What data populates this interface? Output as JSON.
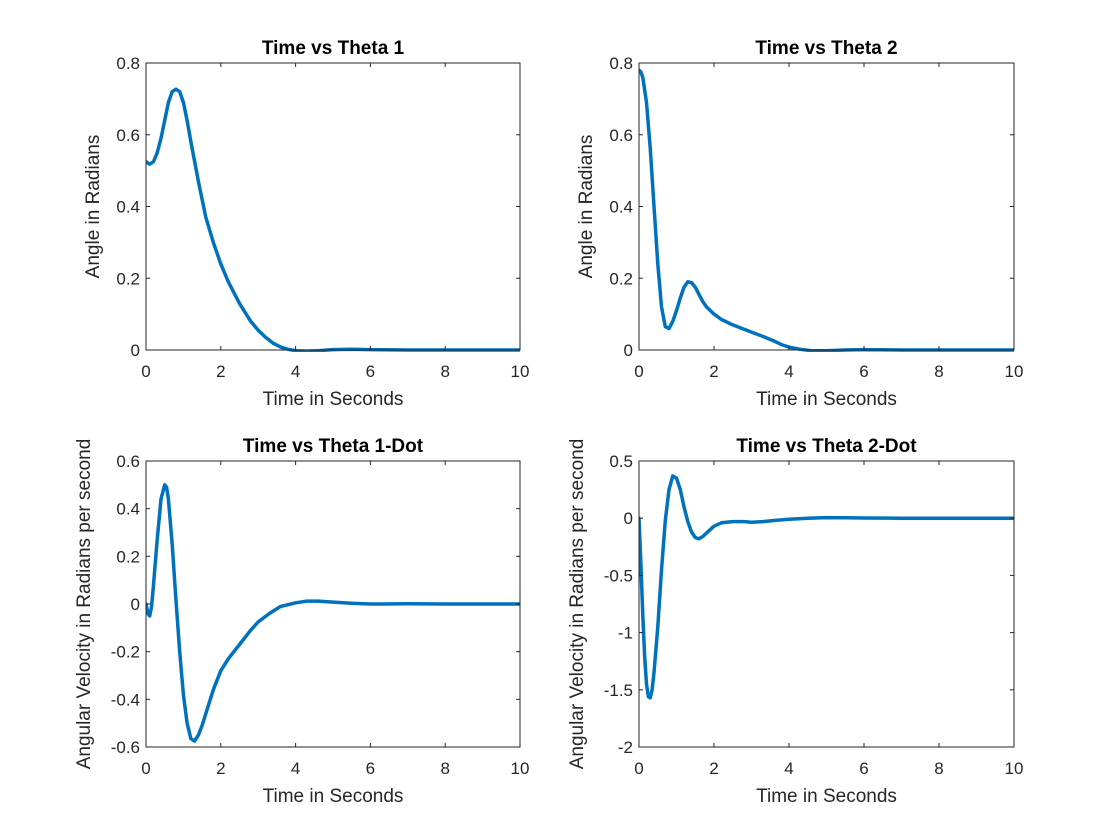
{
  "figure": {
    "background": "#ffffff",
    "line_color": "#0072bd"
  },
  "chart_data": [
    {
      "type": "line",
      "title": "Time vs Theta 1",
      "xlabel": "Time in Seconds",
      "ylabel": "Angle in Radians",
      "xlim": [
        0,
        10
      ],
      "ylim": [
        0,
        0.8
      ],
      "xticks": [
        0,
        2,
        4,
        6,
        8,
        10
      ],
      "yticks": [
        0,
        0.2,
        0.4,
        0.6,
        0.8
      ],
      "xtick_labels": [
        "0",
        "2",
        "4",
        "6",
        "8",
        "10"
      ],
      "ytick_labels": [
        "0",
        "0.2",
        "0.4",
        "0.6",
        "0.8"
      ],
      "grid": false,
      "series": [
        {
          "color": "#0072bd",
          "x": [
            0,
            0.1,
            0.2,
            0.3,
            0.4,
            0.5,
            0.6,
            0.7,
            0.8,
            0.9,
            1.0,
            1.1,
            1.2,
            1.4,
            1.6,
            1.8,
            2.0,
            2.2,
            2.5,
            2.8,
            3.0,
            3.2,
            3.4,
            3.6,
            3.8,
            4.0,
            4.3,
            4.6,
            5.0,
            5.5,
            6.0,
            7.0,
            8.0,
            9.0,
            10.0
          ],
          "y": [
            0.525,
            0.518,
            0.525,
            0.55,
            0.59,
            0.64,
            0.69,
            0.72,
            0.727,
            0.72,
            0.69,
            0.64,
            0.58,
            0.47,
            0.37,
            0.3,
            0.24,
            0.19,
            0.13,
            0.08,
            0.055,
            0.035,
            0.019,
            0.008,
            0.002,
            -0.002,
            -0.003,
            -0.002,
            0.001,
            0.002,
            0.001,
            0.0,
            0.0,
            0.0,
            0.0
          ]
        }
      ]
    },
    {
      "type": "line",
      "title": "Time vs Theta 2",
      "xlabel": "Time in Seconds",
      "ylabel": "Angle in Radians",
      "xlim": [
        0,
        10
      ],
      "ylim": [
        0,
        0.8
      ],
      "xticks": [
        0,
        2,
        4,
        6,
        8,
        10
      ],
      "yticks": [
        0,
        0.2,
        0.4,
        0.6,
        0.8
      ],
      "xtick_labels": [
        "0",
        "2",
        "4",
        "6",
        "8",
        "10"
      ],
      "ytick_labels": [
        "0",
        "0.2",
        "0.4",
        "0.6",
        "0.8"
      ],
      "grid": false,
      "series": [
        {
          "color": "#0072bd",
          "x": [
            0,
            0.05,
            0.1,
            0.2,
            0.3,
            0.4,
            0.5,
            0.6,
            0.7,
            0.8,
            0.9,
            1.0,
            1.1,
            1.2,
            1.3,
            1.4,
            1.5,
            1.6,
            1.7,
            1.8,
            2.0,
            2.2,
            2.5,
            2.8,
            3.0,
            3.3,
            3.6,
            3.8,
            4.0,
            4.3,
            4.6,
            5.0,
            5.5,
            6.0,
            7.0,
            8.0,
            9.0,
            10.0
          ],
          "y": [
            0.78,
            0.775,
            0.76,
            0.69,
            0.56,
            0.4,
            0.24,
            0.12,
            0.065,
            0.06,
            0.08,
            0.11,
            0.145,
            0.175,
            0.19,
            0.188,
            0.175,
            0.155,
            0.135,
            0.12,
            0.1,
            0.085,
            0.07,
            0.058,
            0.05,
            0.038,
            0.025,
            0.015,
            0.008,
            0.002,
            -0.002,
            -0.002,
            0.0,
            0.001,
            0.0,
            0.0,
            0.0,
            0.0
          ]
        }
      ]
    },
    {
      "type": "line",
      "title": "Time vs Theta 1-Dot",
      "xlabel": "Time in Seconds",
      "ylabel": "Angular Velocity in Radians per second",
      "xlim": [
        0,
        10
      ],
      "ylim": [
        -0.6,
        0.6
      ],
      "xticks": [
        0,
        2,
        4,
        6,
        8,
        10
      ],
      "yticks": [
        -0.6,
        -0.4,
        -0.2,
        0,
        0.2,
        0.4,
        0.6
      ],
      "xtick_labels": [
        "0",
        "2",
        "4",
        "6",
        "8",
        "10"
      ],
      "ytick_labels": [
        "-0.6",
        "-0.4",
        "-0.2",
        "0",
        "0.2",
        "0.4",
        "0.6"
      ],
      "grid": false,
      "series": [
        {
          "color": "#0072bd",
          "x": [
            0,
            0.05,
            0.1,
            0.15,
            0.2,
            0.3,
            0.4,
            0.5,
            0.55,
            0.6,
            0.7,
            0.8,
            0.9,
            1.0,
            1.1,
            1.2,
            1.3,
            1.4,
            1.5,
            1.6,
            1.8,
            2.0,
            2.2,
            2.5,
            2.8,
            3.0,
            3.3,
            3.6,
            4.0,
            4.3,
            4.6,
            5.0,
            5.5,
            6.0,
            7.0,
            8.0,
            9.0,
            10.0
          ],
          "y": [
            0.0,
            -0.04,
            -0.05,
            -0.01,
            0.08,
            0.27,
            0.44,
            0.5,
            0.49,
            0.44,
            0.25,
            0.02,
            -0.2,
            -0.38,
            -0.5,
            -0.565,
            -0.575,
            -0.55,
            -0.51,
            -0.46,
            -0.36,
            -0.28,
            -0.23,
            -0.17,
            -0.11,
            -0.075,
            -0.04,
            -0.01,
            0.005,
            0.012,
            0.012,
            0.008,
            0.003,
            0.0,
            0.001,
            0.0,
            0.0,
            0.0
          ]
        }
      ]
    },
    {
      "type": "line",
      "title": "Time vs Theta 2-Dot",
      "xlabel": "Time in Seconds",
      "ylabel": "Angular Velocity in Radians per second",
      "xlim": [
        0,
        10
      ],
      "ylim": [
        -2,
        0.5
      ],
      "xticks": [
        0,
        2,
        4,
        6,
        8,
        10
      ],
      "yticks": [
        -2,
        -1.5,
        -1,
        -0.5,
        0,
        0.5
      ],
      "xtick_labels": [
        "0",
        "2",
        "4",
        "6",
        "8",
        "10"
      ],
      "ytick_labels": [
        "-2",
        "-1.5",
        "-1",
        "-0.5",
        "0",
        "0.5"
      ],
      "grid": false,
      "series": [
        {
          "color": "#0072bd",
          "x": [
            0,
            0.05,
            0.1,
            0.15,
            0.2,
            0.25,
            0.3,
            0.35,
            0.4,
            0.5,
            0.6,
            0.7,
            0.8,
            0.9,
            1.0,
            1.1,
            1.2,
            1.3,
            1.4,
            1.5,
            1.6,
            1.7,
            1.8,
            2.0,
            2.2,
            2.5,
            2.8,
            3.0,
            3.3,
            3.6,
            4.0,
            4.5,
            5.0,
            5.5,
            6.0,
            7.0,
            8.0,
            9.0,
            10.0
          ],
          "y": [
            0.0,
            -0.4,
            -0.85,
            -1.2,
            -1.45,
            -1.56,
            -1.57,
            -1.5,
            -1.35,
            -0.95,
            -0.45,
            -0.02,
            0.25,
            0.37,
            0.35,
            0.25,
            0.1,
            -0.03,
            -0.12,
            -0.17,
            -0.18,
            -0.16,
            -0.13,
            -0.07,
            -0.04,
            -0.03,
            -0.03,
            -0.035,
            -0.03,
            -0.02,
            -0.01,
            0.0,
            0.005,
            0.004,
            0.002,
            0.0,
            0.0,
            0.0,
            0.0
          ]
        }
      ]
    }
  ]
}
